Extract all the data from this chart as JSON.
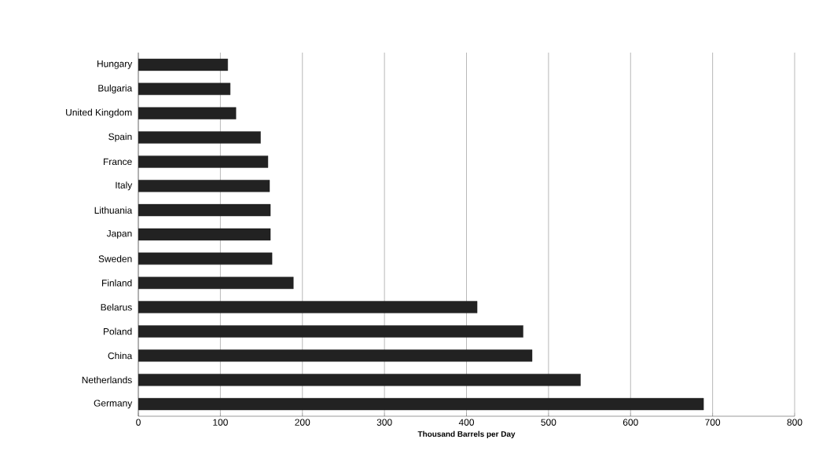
{
  "chart_data": {
    "type": "bar",
    "orientation": "horizontal",
    "xlabel": "Thousand Barrels per Day",
    "categories": [
      "Hungary",
      "Bulgaria",
      "United Kingdom",
      "Spain",
      "France",
      "Italy",
      "Lithuania",
      "Japan",
      "Sweden",
      "Finland",
      "Belarus",
      "Poland",
      "China",
      "Netherlands",
      "Germany"
    ],
    "values": [
      109,
      112,
      119,
      149,
      158,
      160,
      161,
      161,
      163,
      189,
      413,
      469,
      480,
      539,
      689
    ],
    "color": "#222222",
    "xlim": [
      0,
      800
    ],
    "xticks": [
      0,
      100,
      200,
      300,
      400,
      500,
      600,
      700,
      800
    ],
    "grid": "x"
  }
}
